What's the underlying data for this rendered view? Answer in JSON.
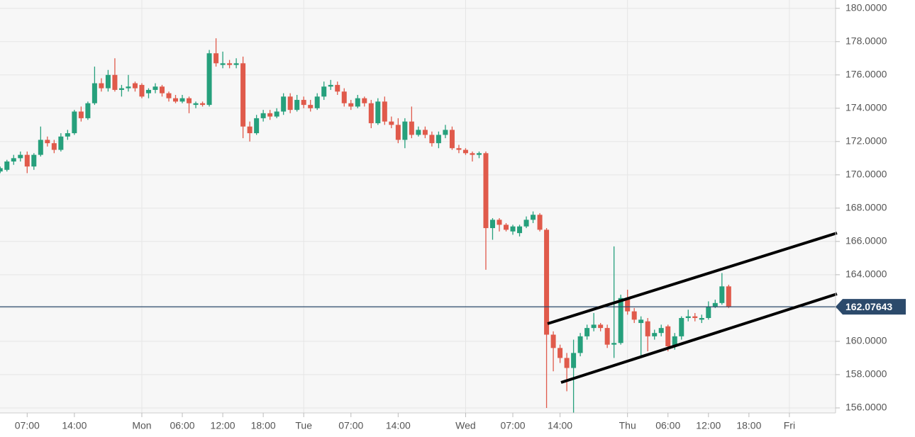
{
  "chart_data": {
    "type": "candlestick",
    "categories": [
      null,
      null,
      null,
      null,
      "07:00",
      null,
      null,
      null,
      null,
      null,
      null,
      "14:00",
      null,
      null,
      null,
      null,
      null,
      null,
      null,
      null,
      null,
      "Mon",
      null,
      null,
      null,
      null,
      null,
      "06:00",
      null,
      null,
      null,
      null,
      null,
      "12:00",
      null,
      null,
      null,
      null,
      null,
      "18:00",
      null,
      null,
      null,
      null,
      null,
      "Tue",
      null,
      null,
      null,
      null,
      null,
      null,
      "07:00",
      null,
      null,
      null,
      null,
      null,
      null,
      "14:00",
      null,
      null,
      null,
      null,
      null,
      null,
      null,
      null,
      null,
      "Wed",
      null,
      null,
      null,
      null,
      null,
      null,
      "07:00",
      null,
      null,
      null,
      null,
      null,
      null,
      "14:00",
      null,
      null,
      null,
      null,
      null,
      null,
      null,
      null,
      null,
      "Thu",
      null,
      null,
      null,
      null,
      null,
      "06:00",
      null,
      null,
      null,
      null,
      null,
      "12:00",
      null,
      null,
      null,
      null,
      null,
      "18:00",
      null,
      null,
      null,
      null,
      null,
      "Fri",
      null,
      null,
      null,
      null,
      null,
      null
    ],
    "ohlc": [
      [
        170.2,
        170.5,
        170.1,
        170.4
      ],
      [
        170.3,
        170.9,
        170.2,
        170.8
      ],
      [
        170.8,
        171.2,
        170.6,
        171.0
      ],
      [
        171.0,
        171.4,
        170.8,
        171.2
      ],
      [
        171.2,
        171.4,
        170.1,
        170.5
      ],
      [
        170.5,
        171.3,
        170.3,
        171.2
      ],
      [
        171.2,
        172.9,
        171.1,
        172.1
      ],
      [
        172.1,
        172.3,
        171.7,
        171.9
      ],
      [
        171.9,
        172.1,
        171.3,
        171.5
      ],
      [
        171.5,
        172.5,
        171.4,
        172.3
      ],
      [
        172.3,
        172.7,
        172.1,
        172.5
      ],
      [
        172.5,
        173.9,
        172.4,
        173.8
      ],
      [
        173.8,
        174.1,
        173.2,
        173.4
      ],
      [
        173.4,
        174.4,
        173.3,
        174.3
      ],
      [
        174.3,
        176.5,
        174.2,
        175.5
      ],
      [
        175.5,
        175.8,
        175.0,
        175.2
      ],
      [
        175.2,
        176.3,
        175.0,
        176.0
      ],
      [
        176.0,
        177.0,
        175.0,
        175.1
      ],
      [
        175.1,
        175.4,
        174.7,
        175.2
      ],
      [
        175.2,
        176.0,
        175.0,
        175.3
      ],
      [
        175.5,
        175.6,
        175.0,
        175.2
      ],
      [
        175.4,
        175.5,
        174.6,
        174.7
      ],
      [
        174.9,
        175.2,
        174.6,
        175.1
      ],
      [
        175.1,
        175.5,
        174.9,
        175.3
      ],
      [
        175.3,
        175.4,
        174.7,
        174.9
      ],
      [
        174.9,
        175.0,
        174.4,
        174.6
      ],
      [
        174.6,
        174.8,
        174.3,
        174.4
      ],
      [
        174.4,
        174.8,
        174.3,
        174.6
      ],
      [
        174.6,
        174.7,
        173.7,
        174.3
      ],
      [
        174.2,
        174.4,
        174.0,
        174.3
      ],
      [
        174.3,
        174.4,
        174.1,
        174.2
      ],
      [
        174.2,
        177.5,
        174.1,
        177.3
      ],
      [
        177.3,
        178.2,
        176.5,
        176.7
      ],
      [
        176.6,
        177.4,
        176.4,
        176.7
      ],
      [
        176.7,
        176.9,
        176.4,
        176.6
      ],
      [
        176.6,
        177.0,
        176.4,
        176.7
      ],
      [
        176.7,
        177.1,
        172.2,
        172.9
      ],
      [
        172.9,
        173.2,
        172.0,
        172.5
      ],
      [
        172.5,
        173.6,
        172.4,
        173.4
      ],
      [
        173.4,
        173.9,
        173.2,
        173.7
      ],
      [
        173.7,
        173.9,
        173.3,
        173.5
      ],
      [
        173.5,
        174.0,
        173.4,
        173.8
      ],
      [
        173.8,
        174.9,
        173.6,
        174.7
      ],
      [
        174.7,
        174.9,
        173.7,
        173.9
      ],
      [
        173.9,
        174.8,
        173.8,
        174.5
      ],
      [
        174.5,
        174.7,
        174.0,
        174.2
      ],
      [
        174.2,
        174.5,
        173.8,
        174.0
      ],
      [
        174.0,
        174.9,
        173.9,
        174.7
      ],
      [
        174.7,
        175.6,
        174.5,
        175.3
      ],
      [
        175.3,
        175.7,
        175.1,
        175.4
      ],
      [
        175.4,
        175.6,
        174.8,
        175.0
      ],
      [
        175.0,
        175.2,
        174.1,
        174.3
      ],
      [
        174.3,
        174.5,
        173.9,
        174.1
      ],
      [
        174.1,
        174.8,
        174.0,
        174.6
      ],
      [
        174.6,
        174.7,
        174.1,
        174.3
      ],
      [
        174.3,
        174.5,
        172.8,
        173.1
      ],
      [
        173.1,
        174.6,
        173.0,
        174.4
      ],
      [
        174.4,
        174.7,
        173.0,
        173.2
      ],
      [
        173.2,
        173.5,
        172.8,
        173.0
      ],
      [
        173.0,
        173.4,
        171.9,
        172.1
      ],
      [
        172.1,
        173.4,
        171.6,
        173.2
      ],
      [
        173.2,
        174.1,
        172.2,
        172.4
      ],
      [
        172.4,
        172.9,
        172.3,
        172.7
      ],
      [
        172.7,
        172.9,
        172.2,
        172.4
      ],
      [
        172.4,
        172.6,
        171.7,
        171.9
      ],
      [
        171.9,
        172.6,
        171.6,
        172.4
      ],
      [
        172.4,
        173.0,
        172.2,
        172.7
      ],
      [
        172.7,
        172.9,
        171.5,
        171.6
      ],
      [
        171.6,
        171.8,
        171.3,
        171.5
      ],
      [
        171.5,
        171.6,
        171.2,
        171.3
      ],
      [
        171.3,
        171.4,
        170.8,
        171.2
      ],
      [
        171.2,
        171.4,
        171.0,
        171.3
      ],
      [
        171.3,
        171.4,
        164.3,
        166.8
      ],
      [
        166.8,
        167.4,
        166.1,
        167.3
      ],
      [
        167.3,
        167.4,
        166.6,
        167.0
      ],
      [
        167.0,
        167.1,
        166.6,
        166.7
      ],
      [
        166.6,
        167.0,
        166.4,
        166.9
      ],
      [
        166.5,
        167.0,
        166.3,
        166.9
      ],
      [
        166.9,
        167.5,
        166.8,
        167.3
      ],
      [
        167.3,
        167.8,
        167.1,
        167.6
      ],
      [
        167.6,
        167.7,
        166.6,
        166.7
      ],
      [
        166.7,
        166.8,
        156.0,
        160.4
      ],
      [
        160.4,
        160.6,
        158.2,
        159.6
      ],
      [
        159.6,
        159.8,
        158.7,
        159.0
      ],
      [
        159.0,
        159.3,
        157.0,
        158.4
      ],
      [
        158.4,
        160.1,
        155.7,
        159.3
      ],
      [
        159.3,
        160.5,
        159.1,
        160.3
      ],
      [
        160.3,
        161.0,
        160.1,
        160.8
      ],
      [
        160.8,
        161.7,
        160.6,
        161.0
      ],
      [
        161.0,
        161.1,
        160.6,
        160.8
      ],
      [
        160.8,
        161.0,
        159.6,
        159.8
      ],
      [
        159.8,
        165.7,
        159.0,
        159.9
      ],
      [
        159.9,
        162.8,
        159.8,
        162.6
      ],
      [
        162.6,
        163.1,
        161.6,
        161.8
      ],
      [
        161.8,
        162.0,
        161.1,
        161.3
      ],
      [
        161.1,
        161.5,
        159.0,
        161.3
      ],
      [
        161.2,
        161.4,
        159.4,
        160.3
      ],
      [
        160.3,
        160.7,
        160.1,
        160.5
      ],
      [
        160.5,
        161.0,
        160.3,
        160.8
      ],
      [
        160.9,
        161.0,
        159.4,
        159.7
      ],
      [
        159.7,
        160.5,
        159.5,
        160.3
      ],
      [
        160.3,
        161.5,
        160.1,
        161.4
      ],
      [
        161.4,
        161.9,
        161.2,
        161.5
      ],
      [
        161.5,
        161.7,
        161.2,
        161.4
      ],
      [
        161.3,
        161.6,
        161.1,
        161.4
      ],
      [
        161.4,
        162.4,
        161.3,
        162.1
      ],
      [
        162.1,
        162.5,
        162.0,
        162.3
      ],
      [
        162.3,
        164.1,
        162.2,
        163.3
      ],
      [
        163.3,
        163.4,
        162.0,
        162.1
      ],
      null,
      null,
      null,
      null,
      null,
      null,
      null,
      null,
      null,
      null,
      null,
      null,
      null,
      null,
      null
    ],
    "up_color": "#26a07c",
    "down_color": "#e05a4b",
    "ylim": [
      155.7,
      180.5
    ],
    "yticks": [
      {
        "value": 156,
        "label": "156.0000"
      },
      {
        "value": 158,
        "label": "158.0000"
      },
      {
        "value": 160,
        "label": "160.0000"
      },
      {
        "value": 162,
        "label": "162.0000"
      },
      {
        "value": 164,
        "label": "164.0000"
      },
      {
        "value": 166,
        "label": "166.0000"
      },
      {
        "value": 168,
        "label": "168.0000"
      },
      {
        "value": 170,
        "label": "170.0000"
      },
      {
        "value": 172,
        "label": "172.0000"
      },
      {
        "value": 174,
        "label": "174.0000"
      },
      {
        "value": 176,
        "label": "176.0000"
      },
      {
        "value": 178,
        "label": "178.0000"
      },
      {
        "value": 180,
        "label": "180.0000"
      }
    ],
    "last_price": 162.07643,
    "last_price_color": "#2c4a6b",
    "grid": true
  }
}
